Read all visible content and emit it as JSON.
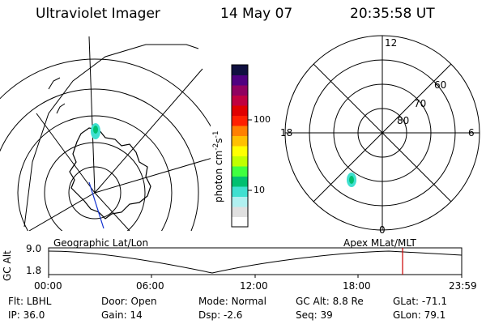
{
  "header": {
    "title": "Ultraviolet Imager",
    "date": "14 May 07",
    "time": "20:35:58 UT"
  },
  "colorbar": {
    "unit": "photon cm",
    "unit_sup": "-2",
    "unit_s": "s",
    "unit_s_sup": "-1",
    "ticks": [
      "100",
      "10"
    ],
    "colors": [
      "#ffffff",
      "#e0e0e0",
      "#b0f0f0",
      "#40e0d0",
      "#00c070",
      "#40ff40",
      "#c0ff00",
      "#ffff00",
      "#ffc000",
      "#ff8000",
      "#ff2000",
      "#e00000",
      "#c00040",
      "#900060",
      "#500080",
      "#101040"
    ]
  },
  "polar_plot": {
    "mlt_labels": {
      "top": "12",
      "left": "18",
      "right": "6",
      "bottom": "0"
    },
    "lat_labels": [
      "60",
      "70",
      "80"
    ]
  },
  "timeline": {
    "y_axis_label": "GC Alt",
    "y_ticks": [
      "9.0",
      "1.8"
    ],
    "left_title": "Geographic Lat/Lon",
    "right_title": "Apex MLat/MLT",
    "x_ticks": [
      "00:00",
      "06:00",
      "12:00",
      "18:00",
      "23:59"
    ],
    "marker_color": "#cc0000"
  },
  "status": {
    "row1": [
      {
        "label": "Flt:",
        "value": "LBHL"
      },
      {
        "label": "Door:",
        "value": "Open"
      },
      {
        "label": "Mode:",
        "value": "Normal"
      },
      {
        "label": "GC Alt:",
        "value": "8.8 Re"
      },
      {
        "label": "GLat:",
        "value": "-71.1"
      }
    ],
    "row2": [
      {
        "label": "IP:",
        "value": "36.0"
      },
      {
        "label": "Gain:",
        "value": "14"
      },
      {
        "label": "Dsp:",
        "value": "-2.6"
      },
      {
        "label": "Seq:",
        "value": "39"
      },
      {
        "label": "GLon:",
        "value": "79.1"
      }
    ]
  }
}
